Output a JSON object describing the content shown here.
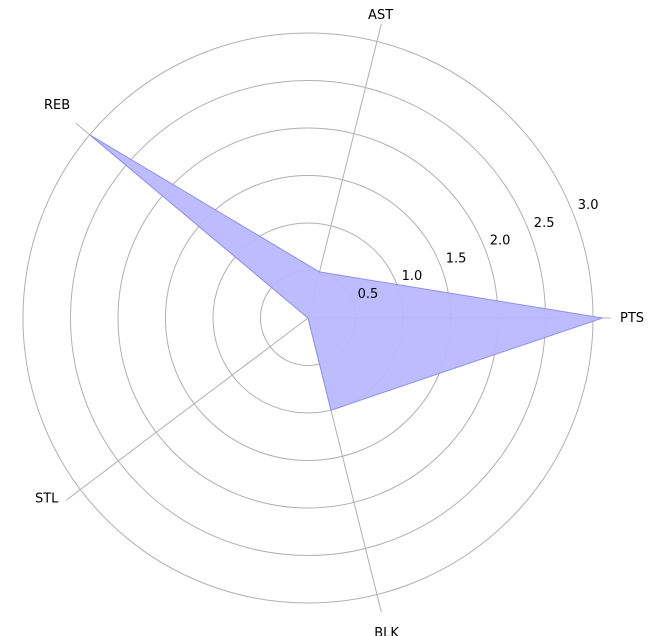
{
  "chart_data": {
    "type": "radar",
    "title": "",
    "axes": [
      "PTS",
      "AST",
      "REB",
      "STL",
      "BLK"
    ],
    "series": [
      {
        "values": [
          3.1,
          0.5,
          3.0,
          0.0,
          1.0
        ]
      }
    ],
    "radial_ticks": [
      "0.5",
      "1.0",
      "1.5",
      "2.0",
      "2.5",
      "3.0"
    ],
    "radial_tick_values": [
      0.5,
      1.0,
      1.5,
      2.0,
      2.5,
      3.0
    ],
    "rmax": 3.0,
    "grid": true,
    "colors": {
      "fill": "#b8b8ff",
      "stroke": "#8f8ff0",
      "grid": "#b0b0b0"
    }
  }
}
